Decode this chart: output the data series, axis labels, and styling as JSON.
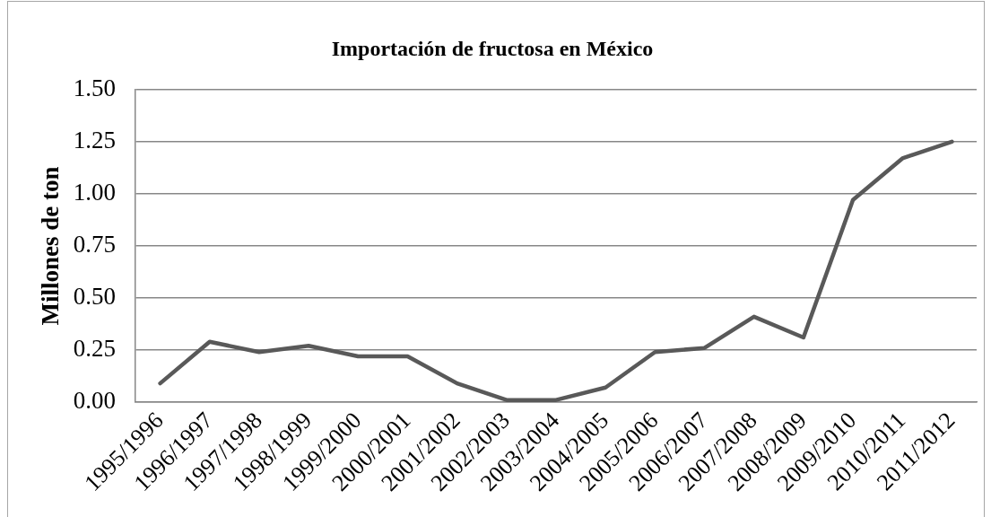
{
  "chart_data": {
    "type": "line",
    "title": "Importación de fructosa en México",
    "ylabel": "Millones de ton",
    "categories": [
      "1995/1996",
      "1996/1997",
      "1997/1998",
      "1998/1999",
      "1999/2000",
      "2000/2001",
      "2001/2002",
      "2002/2003",
      "2003/2004",
      "2004/2005",
      "2005/2006",
      "2006/2007",
      "2007/2008",
      "2008/2009",
      "2009/2010",
      "2010/2011",
      "2011/2012"
    ],
    "values": [
      0.09,
      0.29,
      0.24,
      0.27,
      0.22,
      0.22,
      0.09,
      0.01,
      0.01,
      0.07,
      0.24,
      0.26,
      0.41,
      0.31,
      0.97,
      1.17,
      1.25
    ],
    "color": "#595959",
    "marker": "none",
    "ylim": [
      0,
      1.5
    ],
    "yticks": [
      {
        "value": 0,
        "label": "0.00"
      },
      {
        "value": 0.25,
        "label": "0.25"
      },
      {
        "value": 0.5,
        "label": "0.50"
      },
      {
        "value": 0.75,
        "label": "0.75"
      },
      {
        "value": 1,
        "label": "1.00"
      },
      {
        "value": 1.25,
        "label": "1.25"
      },
      {
        "value": 1.5,
        "label": "1.50"
      }
    ],
    "grid": "y"
  }
}
